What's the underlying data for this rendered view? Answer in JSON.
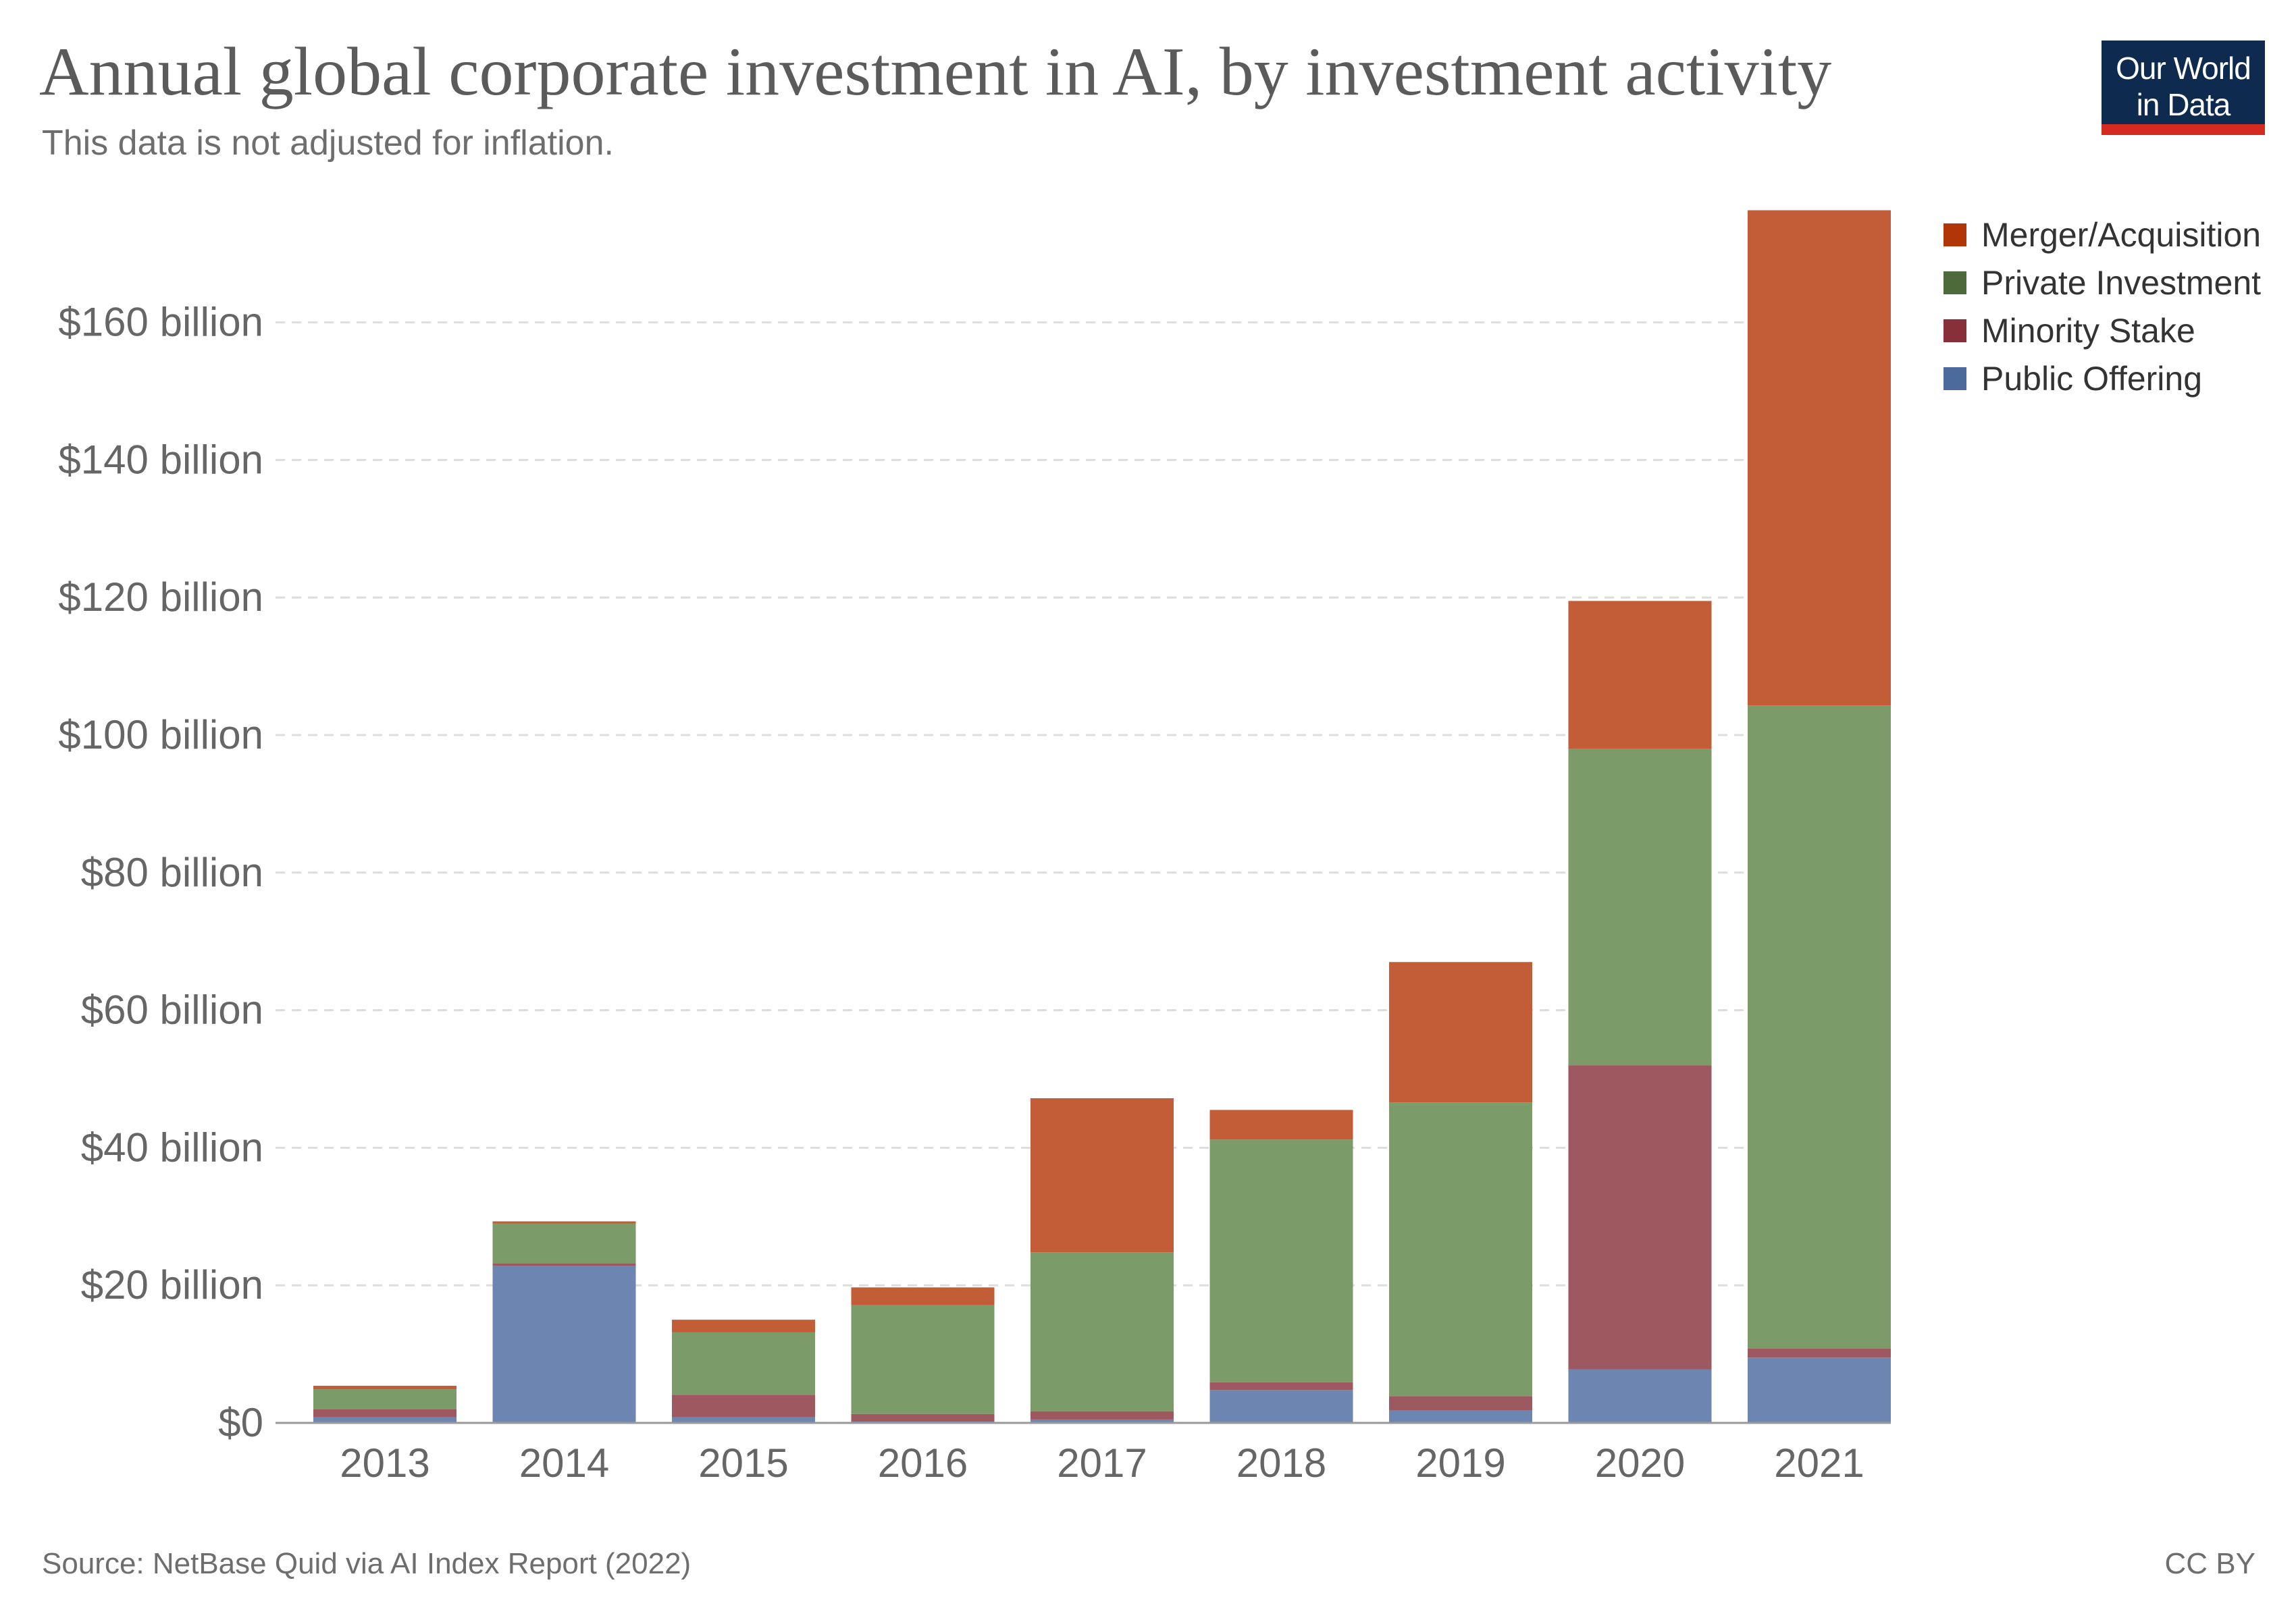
{
  "header": {
    "title": "Annual global corporate investment in AI, by investment activity",
    "subtitle": "This data is not adjusted for inflation.",
    "logo_line1": "Our World",
    "logo_line2": "in Data"
  },
  "footer": {
    "source": "Source: NetBase Quid via AI Index Report (2022)",
    "license": "CC BY"
  },
  "chart_data": {
    "type": "bar",
    "stacked": true,
    "title": "Annual global corporate investment in AI, by investment activity",
    "subtitle": "This data is not adjusted for inflation.",
    "categories": [
      "2013",
      "2014",
      "2015",
      "2016",
      "2017",
      "2018",
      "2019",
      "2020",
      "2021"
    ],
    "series": [
      {
        "name": "Public Offering",
        "color": "#6d86b1",
        "values": [
          0.8,
          22.8,
          0.8,
          0.2,
          0.5,
          4.8,
          1.8,
          7.8,
          9.5
        ]
      },
      {
        "name": "Minority Stake",
        "color": "#9e5960",
        "values": [
          1.2,
          0.4,
          3.3,
          1.1,
          1.2,
          1.1,
          2.1,
          44.2,
          1.3
        ]
      },
      {
        "name": "Private Investment",
        "color": "#7b9b69",
        "values": [
          2.9,
          5.8,
          9.1,
          15.8,
          23.1,
          35.3,
          42.7,
          46.0,
          93.5
        ]
      },
      {
        "name": "Merger/Acquisition",
        "color": "#c25d37",
        "values": [
          0.5,
          0.3,
          1.8,
          2.6,
          22.4,
          4.3,
          20.4,
          21.5,
          72.0
        ]
      }
    ],
    "legend_order": [
      "Merger/Acquisition",
      "Private Investment",
      "Minority Stake",
      "Public Offering"
    ],
    "legend_colors": {
      "Merger/Acquisition": "#b13507",
      "Private Investment": "#4c6a3a",
      "Minority Stake": "#883039",
      "Public Offering": "#4c6a9c"
    },
    "y_ticks": [
      0,
      20,
      40,
      60,
      80,
      100,
      120,
      140,
      160
    ],
    "y_tick_labels": [
      "$0",
      "$20 billion",
      "$40 billion",
      "$60 billion",
      "$80 billion",
      "$100 billion",
      "$120 billion",
      "$140 billion",
      "$160 billion"
    ],
    "ylim": [
      0,
      177
    ],
    "xlabel": "",
    "ylabel": "",
    "grid": true,
    "legend_position": "right"
  }
}
